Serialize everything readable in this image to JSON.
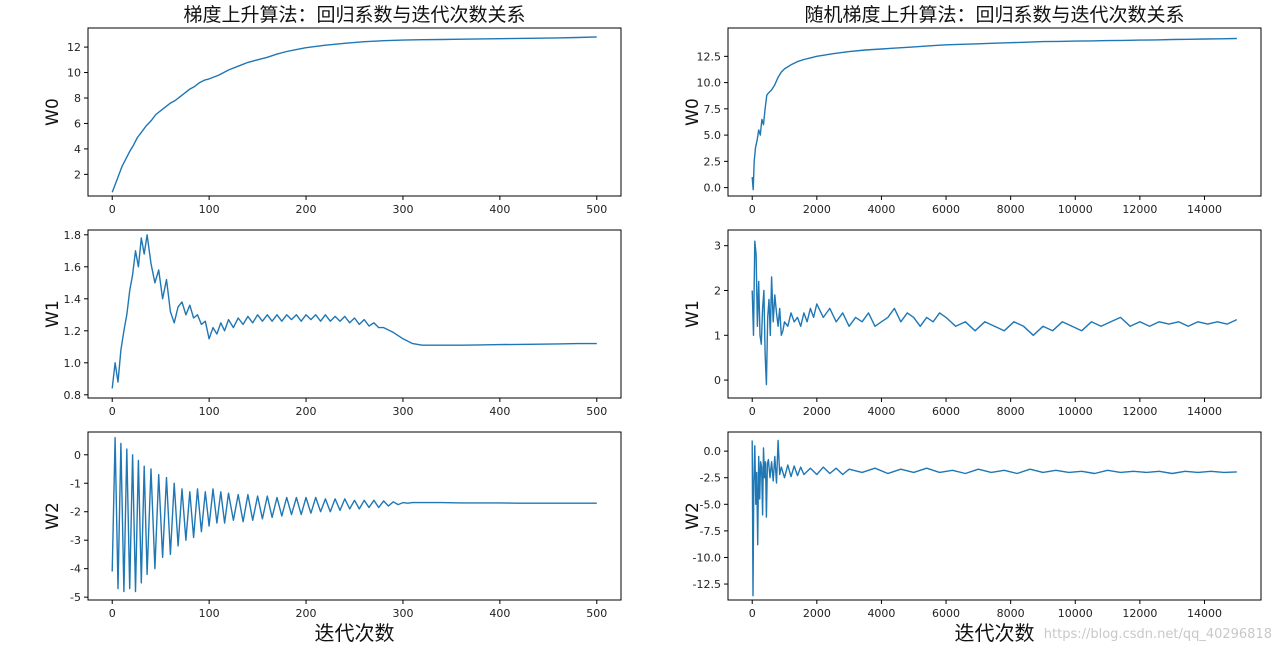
{
  "figure": {
    "watermark": "https://blog.csdn.net/qq_40296818"
  },
  "chart_data": [
    {
      "type": "line",
      "title": "梯度上升算法：回归系数与迭代次数关系",
      "xlabel": "",
      "ylabel": "W0",
      "color": "#1f77b4",
      "xlim": [
        -25,
        525
      ],
      "ylim": [
        0.3,
        13.5
      ],
      "xticks": [
        0,
        100,
        200,
        300,
        400,
        500
      ],
      "yticks": [
        2,
        4,
        6,
        8,
        10,
        12
      ],
      "series": [
        {
          "x": [
            0,
            2,
            5,
            8,
            10,
            14,
            18,
            22,
            26,
            30,
            35,
            40,
            45,
            50,
            55,
            60,
            65,
            70,
            75,
            80,
            85,
            90,
            95,
            100,
            110,
            120,
            130,
            140,
            150,
            160,
            170,
            180,
            190,
            200,
            220,
            240,
            260,
            280,
            300,
            320,
            340,
            360,
            380,
            400,
            420,
            440,
            460,
            480,
            500
          ],
          "y": [
            0.6,
            1.0,
            1.6,
            2.2,
            2.6,
            3.2,
            3.8,
            4.3,
            4.9,
            5.3,
            5.8,
            6.2,
            6.7,
            7.0,
            7.3,
            7.6,
            7.8,
            8.1,
            8.4,
            8.7,
            8.9,
            9.2,
            9.4,
            9.5,
            9.8,
            10.2,
            10.5,
            10.8,
            11.0,
            11.2,
            11.45,
            11.65,
            11.8,
            11.95,
            12.15,
            12.3,
            12.42,
            12.5,
            12.55,
            12.58,
            12.6,
            12.62,
            12.64,
            12.66,
            12.68,
            12.7,
            12.72,
            12.75,
            12.8
          ]
        }
      ]
    },
    {
      "type": "line",
      "title": "",
      "xlabel": "",
      "ylabel": "W1",
      "color": "#1f77b4",
      "xlim": [
        -25,
        525
      ],
      "ylim": [
        0.78,
        1.83
      ],
      "xticks": [
        0,
        100,
        200,
        300,
        400,
        500
      ],
      "yticks": [
        0.8,
        1.0,
        1.2,
        1.4,
        1.6,
        1.8
      ],
      "series": [
        {
          "x": [
            0,
            3,
            6,
            9,
            12,
            15,
            18,
            21,
            24,
            27,
            30,
            33,
            36,
            40,
            44,
            48,
            52,
            56,
            60,
            64,
            68,
            72,
            76,
            80,
            84,
            88,
            92,
            96,
            100,
            104,
            108,
            112,
            116,
            120,
            125,
            130,
            135,
            140,
            145,
            150,
            155,
            160,
            165,
            170,
            175,
            180,
            185,
            190,
            195,
            200,
            205,
            210,
            215,
            220,
            225,
            230,
            235,
            240,
            245,
            250,
            255,
            260,
            265,
            270,
            275,
            280,
            290,
            300,
            310,
            320,
            340,
            360,
            380,
            400,
            420,
            440,
            460,
            480,
            500
          ],
          "y": [
            0.84,
            1.0,
            0.88,
            1.08,
            1.2,
            1.3,
            1.45,
            1.55,
            1.7,
            1.6,
            1.78,
            1.68,
            1.8,
            1.62,
            1.5,
            1.58,
            1.4,
            1.52,
            1.32,
            1.25,
            1.35,
            1.38,
            1.3,
            1.36,
            1.28,
            1.3,
            1.24,
            1.26,
            1.15,
            1.22,
            1.18,
            1.25,
            1.2,
            1.27,
            1.22,
            1.28,
            1.24,
            1.29,
            1.25,
            1.3,
            1.26,
            1.3,
            1.26,
            1.3,
            1.26,
            1.3,
            1.27,
            1.3,
            1.26,
            1.3,
            1.27,
            1.3,
            1.26,
            1.3,
            1.26,
            1.29,
            1.26,
            1.29,
            1.25,
            1.28,
            1.24,
            1.27,
            1.23,
            1.25,
            1.22,
            1.22,
            1.19,
            1.15,
            1.12,
            1.11,
            1.11,
            1.11,
            1.112,
            1.114,
            1.115,
            1.116,
            1.118,
            1.12,
            1.12
          ]
        }
      ]
    },
    {
      "type": "line",
      "title": "",
      "xlabel": "迭代次数",
      "ylabel": "W2",
      "color": "#1f77b4",
      "xlim": [
        -25,
        525
      ],
      "ylim": [
        -5.1,
        0.8
      ],
      "xticks": [
        0,
        100,
        200,
        300,
        400,
        500
      ],
      "yticks": [
        0,
        -1,
        -2,
        -3,
        -4,
        -5
      ],
      "series": [
        {
          "x": [
            0,
            3,
            6,
            9,
            12,
            15,
            18,
            21,
            24,
            27,
            30,
            33,
            36,
            40,
            44,
            48,
            52,
            56,
            60,
            64,
            68,
            72,
            76,
            80,
            84,
            88,
            92,
            96,
            100,
            104,
            108,
            112,
            116,
            120,
            125,
            130,
            135,
            140,
            145,
            150,
            155,
            160,
            165,
            170,
            175,
            180,
            185,
            190,
            195,
            200,
            205,
            210,
            215,
            220,
            225,
            230,
            235,
            240,
            245,
            250,
            255,
            260,
            265,
            270,
            275,
            280,
            285,
            290,
            295,
            300,
            305,
            310,
            320,
            340,
            360,
            380,
            400,
            420,
            440,
            460,
            480,
            500
          ],
          "y": [
            -4.1,
            0.6,
            -4.7,
            0.4,
            -4.8,
            0.2,
            -4.7,
            0.0,
            -4.8,
            -0.2,
            -4.5,
            -0.4,
            -4.2,
            -0.5,
            -4.0,
            -0.7,
            -3.6,
            -0.8,
            -3.5,
            -1.0,
            -3.2,
            -1.2,
            -3.0,
            -1.3,
            -2.9,
            -1.2,
            -2.7,
            -1.3,
            -2.5,
            -1.2,
            -2.4,
            -1.3,
            -2.4,
            -1.35,
            -2.3,
            -1.4,
            -2.35,
            -1.4,
            -2.3,
            -1.45,
            -2.25,
            -1.45,
            -2.2,
            -1.5,
            -2.15,
            -1.5,
            -2.1,
            -1.5,
            -2.1,
            -1.5,
            -2.05,
            -1.5,
            -2.0,
            -1.55,
            -2.0,
            -1.55,
            -1.95,
            -1.55,
            -1.9,
            -1.6,
            -1.9,
            -1.6,
            -1.85,
            -1.6,
            -1.85,
            -1.62,
            -1.8,
            -1.65,
            -1.75,
            -1.68,
            -1.7,
            -1.68,
            -1.68,
            -1.68,
            -1.69,
            -1.69,
            -1.69,
            -1.7,
            -1.7,
            -1.7,
            -1.7,
            -1.7
          ]
        }
      ]
    },
    {
      "type": "line",
      "title": "随机梯度上升算法：回归系数与迭代次数关系",
      "xlabel": "",
      "ylabel": "W0",
      "color": "#1f77b4",
      "xlim": [
        -750,
        15750
      ],
      "ylim": [
        -0.8,
        15.2
      ],
      "xticks": [
        0,
        2000,
        4000,
        6000,
        8000,
        10000,
        12000,
        14000
      ],
      "yticks": [
        0.0,
        2.5,
        5.0,
        7.5,
        10.0,
        12.5
      ],
      "series": [
        {
          "x": [
            0,
            30,
            60,
            100,
            150,
            200,
            250,
            300,
            350,
            400,
            450,
            500,
            600,
            700,
            800,
            900,
            1000,
            1200,
            1400,
            1600,
            1800,
            2000,
            2500,
            3000,
            3500,
            4000,
            4500,
            5000,
            5500,
            6000,
            6500,
            7000,
            7500,
            8000,
            8500,
            9000,
            9500,
            10000,
            10500,
            11000,
            11500,
            12000,
            12500,
            13000,
            13500,
            14000,
            14500,
            15000
          ],
          "y": [
            1.0,
            -0.2,
            2.5,
            3.8,
            4.5,
            5.5,
            5.0,
            6.5,
            6.0,
            7.5,
            8.8,
            9.0,
            9.3,
            9.8,
            10.5,
            11.0,
            11.3,
            11.7,
            12.0,
            12.2,
            12.35,
            12.5,
            12.75,
            12.95,
            13.1,
            13.2,
            13.3,
            13.4,
            13.5,
            13.6,
            13.65,
            13.7,
            13.75,
            13.8,
            13.85,
            13.9,
            13.92,
            13.95,
            13.97,
            14.0,
            14.02,
            14.05,
            14.07,
            14.1,
            14.12,
            14.15,
            14.17,
            14.2
          ]
        }
      ]
    },
    {
      "type": "line",
      "title": "",
      "xlabel": "",
      "ylabel": "W1",
      "color": "#1f77b4",
      "xlim": [
        -750,
        15750
      ],
      "ylim": [
        -0.4,
        3.35
      ],
      "xticks": [
        0,
        2000,
        4000,
        6000,
        8000,
        10000,
        12000,
        14000
      ],
      "yticks": [
        0,
        1,
        2,
        3
      ],
      "series": [
        {
          "x": [
            0,
            40,
            80,
            120,
            160,
            200,
            240,
            280,
            320,
            360,
            400,
            440,
            480,
            520,
            560,
            600,
            650,
            700,
            750,
            800,
            850,
            900,
            950,
            1000,
            1100,
            1200,
            1300,
            1400,
            1500,
            1600,
            1700,
            1800,
            1900,
            2000,
            2200,
            2400,
            2600,
            2800,
            3000,
            3200,
            3400,
            3600,
            3800,
            4000,
            4200,
            4400,
            4600,
            4800,
            5000,
            5200,
            5400,
            5600,
            5800,
            6000,
            6300,
            6600,
            6900,
            7200,
            7500,
            7800,
            8100,
            8400,
            8700,
            9000,
            9300,
            9600,
            9900,
            10200,
            10500,
            10800,
            11100,
            11400,
            11700,
            12000,
            12300,
            12600,
            12900,
            13200,
            13500,
            13800,
            14100,
            14400,
            14700,
            15000
          ],
          "y": [
            2.0,
            1.0,
            3.1,
            2.8,
            1.2,
            2.2,
            1.0,
            0.8,
            1.6,
            2.0,
            0.6,
            -0.1,
            1.4,
            1.8,
            1.0,
            2.3,
            1.3,
            1.9,
            1.5,
            1.2,
            1.6,
            1.0,
            1.1,
            1.3,
            1.2,
            1.5,
            1.3,
            1.4,
            1.2,
            1.5,
            1.3,
            1.6,
            1.4,
            1.7,
            1.4,
            1.6,
            1.3,
            1.5,
            1.2,
            1.4,
            1.3,
            1.5,
            1.2,
            1.3,
            1.4,
            1.6,
            1.3,
            1.5,
            1.4,
            1.2,
            1.4,
            1.3,
            1.5,
            1.4,
            1.2,
            1.3,
            1.1,
            1.3,
            1.2,
            1.1,
            1.3,
            1.2,
            1.0,
            1.2,
            1.1,
            1.3,
            1.2,
            1.1,
            1.3,
            1.2,
            1.3,
            1.4,
            1.2,
            1.3,
            1.2,
            1.3,
            1.25,
            1.3,
            1.2,
            1.3,
            1.25,
            1.3,
            1.25,
            1.35
          ]
        }
      ]
    },
    {
      "type": "line",
      "title": "",
      "xlabel": "迭代次数",
      "ylabel": "W2",
      "color": "#1f77b4",
      "xlim": [
        -750,
        15750
      ],
      "ylim": [
        -14.0,
        1.8
      ],
      "xticks": [
        0,
        2000,
        4000,
        6000,
        8000,
        10000,
        12000,
        14000
      ],
      "yticks": [
        0.0,
        -2.5,
        -5.0,
        -7.5,
        -10.0,
        -12.5
      ],
      "series": [
        {
          "x": [
            0,
            25,
            50,
            80,
            110,
            140,
            170,
            200,
            230,
            260,
            290,
            320,
            350,
            380,
            410,
            440,
            470,
            500,
            550,
            600,
            650,
            700,
            750,
            800,
            850,
            900,
            1000,
            1100,
            1200,
            1300,
            1400,
            1500,
            1600,
            1800,
            2000,
            2200,
            2400,
            2600,
            2800,
            3000,
            3400,
            3800,
            4200,
            4600,
            5000,
            5400,
            5800,
            6200,
            6600,
            7000,
            7400,
            7800,
            8200,
            8600,
            9000,
            9400,
            9800,
            10200,
            10600,
            11000,
            11400,
            11800,
            12200,
            12600,
            13000,
            13400,
            13800,
            14200,
            14600,
            15000
          ],
          "y": [
            1.0,
            -13.6,
            -3.0,
            0.5,
            -5.0,
            -2.0,
            -8.8,
            -0.5,
            -4.5,
            -1.0,
            -1.5,
            -6.0,
            0.3,
            -2.5,
            -1.0,
            -6.2,
            -1.2,
            -0.8,
            -2.5,
            -1.0,
            -2.8,
            -0.5,
            -3.0,
            1.0,
            -2.2,
            -1.5,
            -2.5,
            -1.3,
            -2.4,
            -1.4,
            -2.3,
            -1.5,
            -2.2,
            -1.6,
            -2.2,
            -1.5,
            -2.1,
            -1.6,
            -2.2,
            -1.7,
            -2.0,
            -1.6,
            -2.1,
            -1.7,
            -2.0,
            -1.6,
            -2.0,
            -1.8,
            -2.1,
            -1.7,
            -2.0,
            -1.8,
            -2.1,
            -1.7,
            -2.0,
            -1.8,
            -2.0,
            -1.9,
            -2.1,
            -1.8,
            -2.0,
            -1.9,
            -2.0,
            -1.9,
            -2.1,
            -1.9,
            -2.0,
            -1.9,
            -2.0,
            -1.95
          ]
        }
      ]
    }
  ]
}
